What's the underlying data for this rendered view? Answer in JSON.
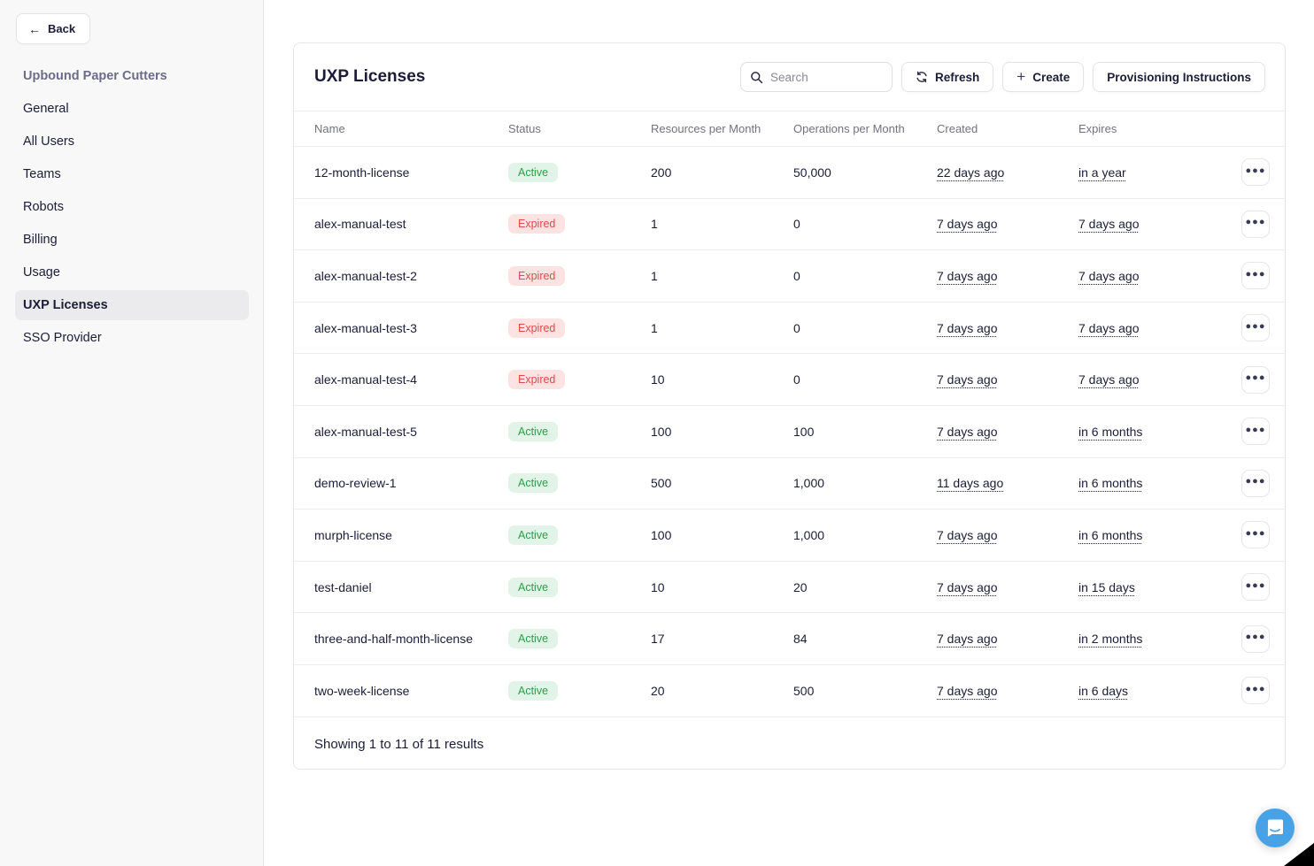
{
  "sidebar": {
    "back_label": "Back",
    "org_name": "Upbound Paper Cutters",
    "items": [
      {
        "label": "General",
        "active": false
      },
      {
        "label": "All Users",
        "active": false
      },
      {
        "label": "Teams",
        "active": false
      },
      {
        "label": "Robots",
        "active": false
      },
      {
        "label": "Billing",
        "active": false
      },
      {
        "label": "Usage",
        "active": false
      },
      {
        "label": "UXP Licenses",
        "active": true
      },
      {
        "label": "SSO Provider",
        "active": false
      }
    ]
  },
  "header": {
    "title": "UXP Licenses",
    "search_placeholder": "Search",
    "search_value": "",
    "refresh_label": "Refresh",
    "create_label": "Create",
    "provisioning_label": "Provisioning Instructions"
  },
  "table": {
    "columns": [
      "Name",
      "Status",
      "Resources per Month",
      "Operations per Month",
      "Created",
      "Expires"
    ],
    "rows": [
      {
        "name": "12-month-license",
        "status": "Active",
        "resources": "200",
        "operations": "50,000",
        "created": "22 days ago",
        "expires": "in a year"
      },
      {
        "name": "alex-manual-test",
        "status": "Expired",
        "resources": "1",
        "operations": "0",
        "created": "7 days ago",
        "expires": "7 days ago"
      },
      {
        "name": "alex-manual-test-2",
        "status": "Expired",
        "resources": "1",
        "operations": "0",
        "created": "7 days ago",
        "expires": "7 days ago"
      },
      {
        "name": "alex-manual-test-3",
        "status": "Expired",
        "resources": "1",
        "operations": "0",
        "created": "7 days ago",
        "expires": "7 days ago"
      },
      {
        "name": "alex-manual-test-4",
        "status": "Expired",
        "resources": "10",
        "operations": "0",
        "created": "7 days ago",
        "expires": "7 days ago"
      },
      {
        "name": "alex-manual-test-5",
        "status": "Active",
        "resources": "100",
        "operations": "100",
        "created": "7 days ago",
        "expires": "in 6 months"
      },
      {
        "name": "demo-review-1",
        "status": "Active",
        "resources": "500",
        "operations": "1,000",
        "created": "11 days ago",
        "expires": "in 6 months"
      },
      {
        "name": "murph-license",
        "status": "Active",
        "resources": "100",
        "operations": "1,000",
        "created": "7 days ago",
        "expires": "in 6 months"
      },
      {
        "name": "test-daniel",
        "status": "Active",
        "resources": "10",
        "operations": "20",
        "created": "7 days ago",
        "expires": "in 15 days"
      },
      {
        "name": "three-and-half-month-license",
        "status": "Active",
        "resources": "17",
        "operations": "84",
        "created": "7 days ago",
        "expires": "in 2 months"
      },
      {
        "name": "two-week-license",
        "status": "Active",
        "resources": "20",
        "operations": "500",
        "created": "7 days ago",
        "expires": "in 6 days"
      }
    ],
    "footer_text": "Showing 1 to 11 of 11 results"
  },
  "colors": {
    "status_active_bg": "#e2f3e7",
    "status_active_text": "#2f9e49",
    "status_expired_bg": "#fce3e2",
    "status_expired_text": "#dd4b4b",
    "chat_blue": "#47a3e6"
  },
  "chat": {
    "icon": "intercom-chat-bubble"
  }
}
